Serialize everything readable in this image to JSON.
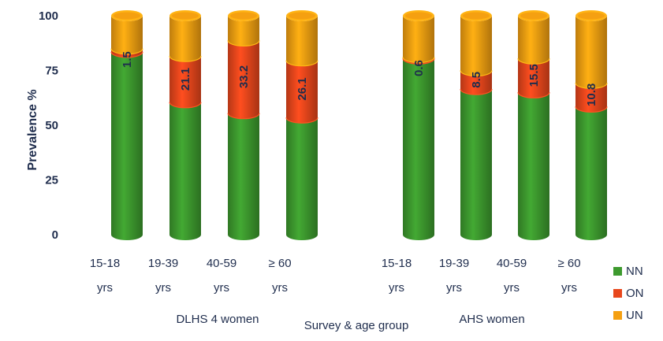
{
  "chart_data": {
    "type": "bar",
    "stacked": true,
    "title": "",
    "xlabel": "Survey & age group",
    "ylabel": "Prevalence %",
    "ylim": [
      0,
      100
    ],
    "yticks": [
      "0",
      "25",
      "50",
      "75",
      "100"
    ],
    "groups": [
      {
        "name": "DLHS 4 women",
        "categories": [
          "15-18 yrs",
          "19-39 yrs",
          "40-59 yrs",
          "≥ 60 yrs"
        ]
      },
      {
        "name": "AHS women",
        "categories": [
          "15-18 yrs",
          "19-39 yrs",
          "40-59 yrs",
          "≥ 60 yrs"
        ]
      }
    ],
    "categories": [
      "15-18 yrs",
      "19-39 yrs",
      "40-59 yrs",
      "≥ 60 yrs",
      "15-18 yrs",
      "19-39 yrs",
      "40-59 yrs",
      "≥ 60 yrs"
    ],
    "series": [
      {
        "name": "NN",
        "color": "#3d9a2e",
        "values": [
          83.5,
          60.5,
          55.5,
          53.5,
          80.5,
          66.5,
          65.0,
          58.5
        ]
      },
      {
        "name": "ON",
        "color": "#e8471c",
        "values": [
          1.5,
          21.1,
          33.2,
          26.1,
          0.6,
          8.5,
          15.5,
          10.8
        ]
      },
      {
        "name": "UN",
        "color": "#f5a011",
        "values": [
          15.0,
          18.4,
          11.3,
          20.4,
          18.9,
          25.0,
          19.5,
          30.7
        ]
      }
    ],
    "data_labels": [
      "1.5",
      "21.1",
      "33.2",
      "26.1",
      "0.6",
      "8.5",
      "15.5",
      "10.8"
    ],
    "legend_position": "bottom-right",
    "grid": false
  }
}
